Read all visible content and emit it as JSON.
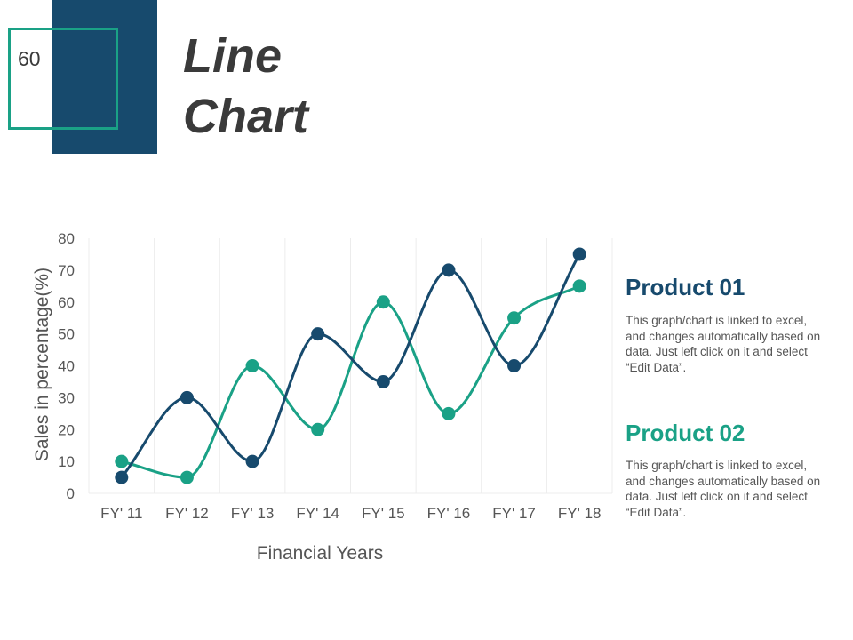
{
  "slide": {
    "number": "60",
    "title_line1": "Line",
    "title_line2": "Chart"
  },
  "colors": {
    "accent_dark": "#174a6d",
    "accent_teal": "#1aa186",
    "grid": "#ececec"
  },
  "legend": [
    {
      "title": "Product 01",
      "description": "This graph/chart is linked to excel, and changes automatically based on data. Just left click on it and select “Edit Data”."
    },
    {
      "title": "Product 02",
      "description": "This graph/chart is linked to excel, and changes automatically based on data. Just left click on it and select “Edit Data”."
    }
  ],
  "chart_data": {
    "type": "line",
    "smooth": true,
    "title": "",
    "xlabel": "Financial Years",
    "ylabel": "Sales in percentage(%)",
    "ylim": [
      0,
      80
    ],
    "yticks": [
      0,
      10,
      20,
      30,
      40,
      50,
      60,
      70,
      80
    ],
    "grid": "vertical",
    "legend_position": "right",
    "categories": [
      "FY' 11",
      "FY' 12",
      "FY' 13",
      "FY' 14",
      "FY' 15",
      "FY' 16",
      "FY' 17",
      "FY' 18"
    ],
    "series": [
      {
        "name": "Product 01",
        "color": "#174a6d",
        "values": [
          5,
          30,
          10,
          50,
          35,
          70,
          40,
          75
        ]
      },
      {
        "name": "Product 02",
        "color": "#1aa186",
        "values": [
          10,
          5,
          40,
          20,
          60,
          25,
          55,
          65
        ]
      }
    ]
  }
}
